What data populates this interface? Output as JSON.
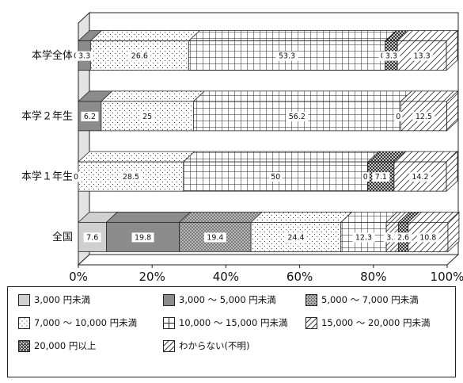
{
  "chart_data": {
    "type": "bar",
    "orientation": "horizontal",
    "stacked": true,
    "percent": true,
    "categories": [
      "本学全体",
      "本学２年生",
      "本学１年生",
      "全国"
    ],
    "series": [
      {
        "name": "3,000 円未満",
        "values": [
          0,
          0,
          0,
          7.6
        ],
        "labels": [
          "0",
          "",
          "0",
          "7.6"
        ]
      },
      {
        "name": "3,000 ～ 5,000 円未満",
        "values": [
          3.3,
          6.2,
          0,
          19.8
        ],
        "labels": [
          "3.3",
          "6.2",
          "",
          "19.8"
        ]
      },
      {
        "name": "5,000 ～ 7,000 円未満",
        "values": [
          0,
          0,
          0,
          19.4
        ],
        "labels": [
          "",
          "",
          "",
          "19.4"
        ]
      },
      {
        "name": "7,000 ～ 10,000 円未満",
        "values": [
          26.6,
          25,
          28.5,
          24.4
        ],
        "labels": [
          "26.6",
          "25",
          "28.5",
          "24.4"
        ]
      },
      {
        "name": "10,000 ～ 15,000 円未満",
        "values": [
          53.3,
          56.2,
          50,
          12.3
        ],
        "labels": [
          "53.3",
          "56.2",
          "50",
          "12.3"
        ]
      },
      {
        "name": "15,000 ～ 20,000 円未満",
        "values": [
          0,
          0,
          0,
          3.3
        ],
        "labels": [
          "0",
          "0",
          "0",
          "3.3"
        ]
      },
      {
        "name": "20,000 円以上",
        "values": [
          3.3,
          0,
          7.1,
          2.6
        ],
        "labels": [
          "3.3",
          "",
          "7.1",
          "2.6"
        ]
      },
      {
        "name": "わからない（不明）",
        "values": [
          13.3,
          12.5,
          14.2,
          10.8
        ],
        "labels": [
          "13.3",
          "12.5",
          "14.2",
          "10.8"
        ]
      }
    ],
    "xlim": [
      0,
      100
    ],
    "x_ticks": [
      "0%",
      "20%",
      "40%",
      "60%",
      "80%",
      "100%"
    ],
    "grid": false,
    "legend_position": "bottom",
    "bar_style": "3d"
  },
  "legend": [
    {
      "label": "3,000 円未満",
      "pattern": "gray-light"
    },
    {
      "label": "3,000 ～ 5,000 円未満",
      "pattern": "gray-dark"
    },
    {
      "label": "5,000 ～ 7,000 円未満",
      "pattern": "dots-dense"
    },
    {
      "label": "7,000 ～ 10,000 円未満",
      "pattern": "dots-sparse"
    },
    {
      "label": "10,000 ～ 15,000 円未満",
      "pattern": "grid"
    },
    {
      "label": "15,000 ～ 20,000 円未満",
      "pattern": "diagonal"
    },
    {
      "label": "20,000 円以上",
      "pattern": "crosshatch"
    },
    {
      "label": "わからない(不明)",
      "pattern": "diagonal-wide"
    }
  ],
  "colors": {
    "gray-light": "#d0d0d0",
    "gray-dark": "#8c8c8c",
    "dots-dense": "#999999",
    "stroke": "#222222"
  }
}
